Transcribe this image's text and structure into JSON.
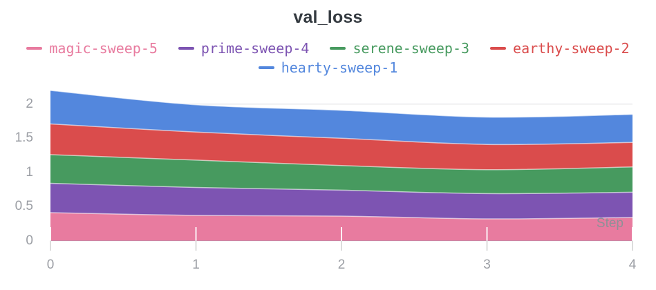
{
  "chart_data": {
    "type": "area",
    "stacked": true,
    "title": "val_loss",
    "xlabel": "Step",
    "ylabel": "",
    "x": [
      0,
      1,
      2,
      3,
      4
    ],
    "xlim": [
      0,
      4
    ],
    "ylim": [
      0,
      2.3
    ],
    "x_tick_labels": [
      "0",
      "1",
      "2",
      "3",
      "4"
    ],
    "y_ticks": [
      0,
      0.5,
      1,
      1.5,
      2
    ],
    "y_tick_labels": [
      "0",
      "0.5",
      "1",
      "1.5",
      "2"
    ],
    "grid": "horizontal",
    "legend_position": "top",
    "stack_order": "first-series-at-bottom",
    "series": [
      {
        "name": "magic-sweep-5",
        "color": "#E87B9F",
        "values": [
          0.41,
          0.37,
          0.36,
          0.32,
          0.34
        ]
      },
      {
        "name": "prime-sweep-4",
        "color": "#7D54B2",
        "values": [
          0.43,
          0.41,
          0.38,
          0.37,
          0.37
        ]
      },
      {
        "name": "serene-sweep-3",
        "color": "#479A5F",
        "values": [
          0.42,
          0.4,
          0.36,
          0.35,
          0.37
        ]
      },
      {
        "name": "earthy-sweep-2",
        "color": "#DA4C4C",
        "values": [
          0.45,
          0.41,
          0.4,
          0.37,
          0.36
        ]
      },
      {
        "name": "hearty-sweep-1",
        "color": "#5387DD",
        "values": [
          0.49,
          0.4,
          0.41,
          0.4,
          0.41
        ]
      }
    ],
    "cumulative_tops": {
      "magic-sweep-5": [
        0.41,
        0.37,
        0.36,
        0.32,
        0.34
      ],
      "prime-sweep-4": [
        0.84,
        0.78,
        0.74,
        0.69,
        0.71
      ],
      "serene-sweep-3": [
        1.26,
        1.18,
        1.1,
        1.04,
        1.08
      ],
      "earthy-sweep-2": [
        1.71,
        1.59,
        1.5,
        1.41,
        1.44
      ],
      "hearty-sweep-1": [
        2.2,
        1.99,
        1.91,
        1.81,
        1.85
      ]
    }
  },
  "ui_colors": {
    "background": "#ffffff",
    "title_text": "#343a40",
    "grid_line": "#f0f0f1",
    "tick_label": "#9b9ea4",
    "axis_tick_below": "#dcdcdc",
    "axis_tick_above": "rgba(255,255,255,0.9)",
    "boundary_stroke": "rgba(255,255,255,0.6)",
    "step_label": "#8e9097"
  }
}
